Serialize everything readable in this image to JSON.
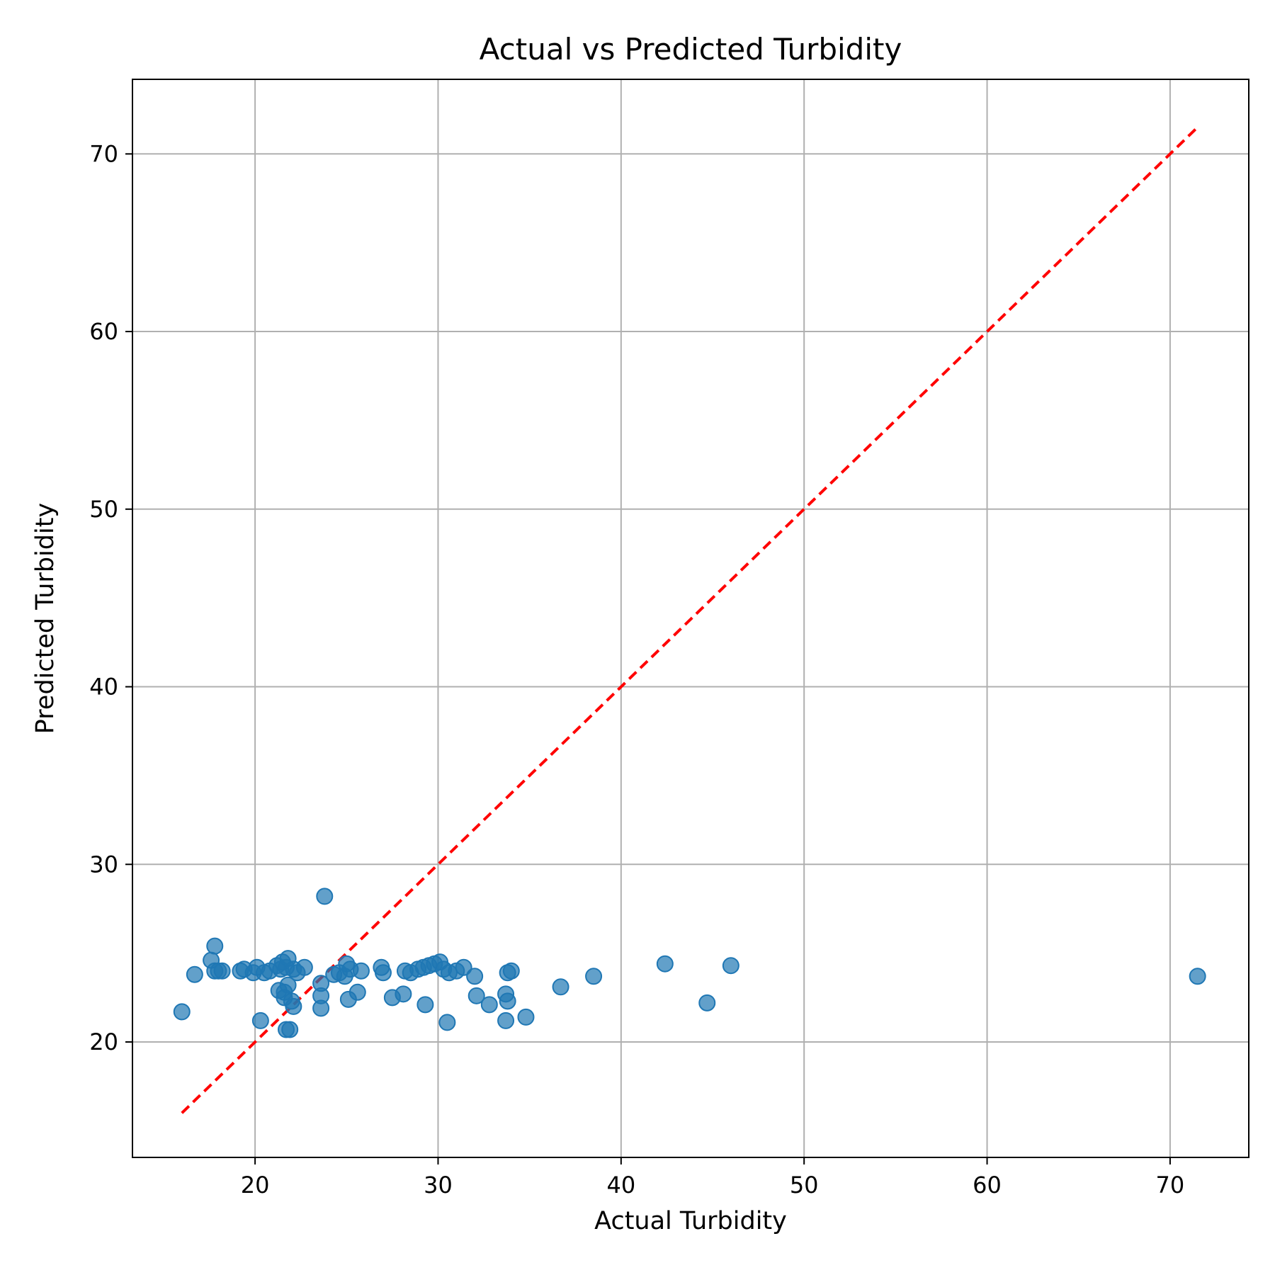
{
  "chart_data": {
    "type": "scatter",
    "title": "Actual vs Predicted Turbidity",
    "xlabel": "Actual Turbidity",
    "ylabel": "Predicted Turbidity",
    "xlim": [
      13.3,
      74.3
    ],
    "ylim": [
      13.5,
      74.2
    ],
    "xticks": [
      20,
      30,
      40,
      50,
      60,
      70
    ],
    "yticks": [
      20,
      30,
      40,
      50,
      60,
      70
    ],
    "grid": true,
    "colors": {
      "points": "#1f77b4",
      "reference_line": "#ff0000"
    },
    "reference_line": {
      "x": [
        16.0,
        71.4
      ],
      "y": [
        16.0,
        71.4
      ],
      "style": "dashed"
    },
    "points": [
      {
        "x": 16.0,
        "y": 21.7
      },
      {
        "x": 16.7,
        "y": 23.8
      },
      {
        "x": 17.6,
        "y": 24.6
      },
      {
        "x": 17.8,
        "y": 25.4
      },
      {
        "x": 17.8,
        "y": 24.0
      },
      {
        "x": 18.0,
        "y": 24.0
      },
      {
        "x": 18.2,
        "y": 24.0
      },
      {
        "x": 19.2,
        "y": 24.0
      },
      {
        "x": 19.4,
        "y": 24.1
      },
      {
        "x": 19.9,
        "y": 23.9
      },
      {
        "x": 20.1,
        "y": 24.2
      },
      {
        "x": 20.3,
        "y": 21.2
      },
      {
        "x": 20.5,
        "y": 23.9
      },
      {
        "x": 20.8,
        "y": 24.0
      },
      {
        "x": 21.2,
        "y": 24.3
      },
      {
        "x": 21.3,
        "y": 22.9
      },
      {
        "x": 21.4,
        "y": 24.1
      },
      {
        "x": 21.5,
        "y": 24.5
      },
      {
        "x": 21.6,
        "y": 22.8
      },
      {
        "x": 21.6,
        "y": 22.5
      },
      {
        "x": 21.7,
        "y": 24.2
      },
      {
        "x": 21.7,
        "y": 20.7
      },
      {
        "x": 21.8,
        "y": 24.7
      },
      {
        "x": 21.8,
        "y": 23.2
      },
      {
        "x": 21.9,
        "y": 20.7
      },
      {
        "x": 22.0,
        "y": 22.3
      },
      {
        "x": 22.1,
        "y": 24.1
      },
      {
        "x": 22.1,
        "y": 22.0
      },
      {
        "x": 22.3,
        "y": 23.9
      },
      {
        "x": 22.7,
        "y": 24.2
      },
      {
        "x": 23.6,
        "y": 21.9
      },
      {
        "x": 23.6,
        "y": 22.6
      },
      {
        "x": 23.6,
        "y": 23.3
      },
      {
        "x": 23.8,
        "y": 28.2
      },
      {
        "x": 24.3,
        "y": 23.8
      },
      {
        "x": 24.6,
        "y": 23.9
      },
      {
        "x": 24.9,
        "y": 23.7
      },
      {
        "x": 25.0,
        "y": 24.4
      },
      {
        "x": 25.1,
        "y": 22.4
      },
      {
        "x": 25.2,
        "y": 24.1
      },
      {
        "x": 25.6,
        "y": 22.8
      },
      {
        "x": 25.8,
        "y": 24.0
      },
      {
        "x": 26.9,
        "y": 24.2
      },
      {
        "x": 27.0,
        "y": 23.9
      },
      {
        "x": 27.5,
        "y": 22.5
      },
      {
        "x": 28.1,
        "y": 22.7
      },
      {
        "x": 28.2,
        "y": 24.0
      },
      {
        "x": 28.5,
        "y": 23.9
      },
      {
        "x": 28.9,
        "y": 24.1
      },
      {
        "x": 29.2,
        "y": 24.2
      },
      {
        "x": 29.3,
        "y": 22.1
      },
      {
        "x": 29.5,
        "y": 24.3
      },
      {
        "x": 29.8,
        "y": 24.4
      },
      {
        "x": 30.1,
        "y": 24.5
      },
      {
        "x": 30.3,
        "y": 24.1
      },
      {
        "x": 30.5,
        "y": 21.1
      },
      {
        "x": 30.6,
        "y": 23.9
      },
      {
        "x": 31.0,
        "y": 24.0
      },
      {
        "x": 31.4,
        "y": 24.2
      },
      {
        "x": 32.0,
        "y": 23.7
      },
      {
        "x": 32.1,
        "y": 22.6
      },
      {
        "x": 32.8,
        "y": 22.1
      },
      {
        "x": 33.7,
        "y": 22.7
      },
      {
        "x": 33.7,
        "y": 21.2
      },
      {
        "x": 33.8,
        "y": 23.9
      },
      {
        "x": 33.8,
        "y": 22.3
      },
      {
        "x": 34.0,
        "y": 24.0
      },
      {
        "x": 34.8,
        "y": 21.4
      },
      {
        "x": 36.7,
        "y": 23.1
      },
      {
        "x": 38.5,
        "y": 23.7
      },
      {
        "x": 42.4,
        "y": 24.4
      },
      {
        "x": 44.7,
        "y": 22.2
      },
      {
        "x": 46.0,
        "y": 24.3
      },
      {
        "x": 71.5,
        "y": 23.7
      }
    ]
  }
}
